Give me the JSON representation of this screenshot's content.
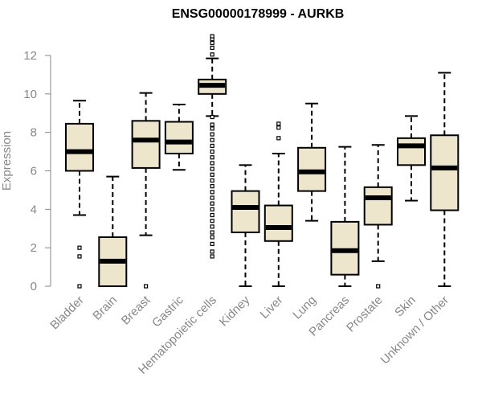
{
  "chart_data": {
    "type": "box",
    "title": "ENSG00000178999 - AURKB",
    "ylabel": "Expression",
    "xlabel": "",
    "ylim": [
      0,
      12
    ],
    "yticks": [
      0,
      2,
      4,
      6,
      8,
      10,
      12
    ],
    "box_fill": "#ede5cc",
    "categories": [
      "Bladder",
      "Brain",
      "Breast",
      "Gastric",
      "Hematopoietic cells",
      "Kidney",
      "Liver",
      "Lung",
      "Pancreas",
      "Prostate",
      "Skin",
      "Unknown / Other"
    ],
    "boxes": [
      {
        "category": "Bladder",
        "whisker_low": 3.7,
        "q1": 6.0,
        "median": 7.0,
        "q3": 8.45,
        "whisker_high": 9.65,
        "outliers": [
          2.0,
          1.55,
          0.0
        ]
      },
      {
        "category": "Brain",
        "whisker_low": 0.0,
        "q1": 0.0,
        "median": 1.3,
        "q3": 2.55,
        "whisker_high": 5.7,
        "outliers": []
      },
      {
        "category": "Breast",
        "whisker_low": 2.65,
        "q1": 6.15,
        "median": 7.6,
        "q3": 8.6,
        "whisker_high": 10.05,
        "outliers": [
          0.0
        ]
      },
      {
        "category": "Gastric",
        "whisker_low": 6.05,
        "q1": 6.9,
        "median": 7.5,
        "q3": 8.55,
        "whisker_high": 9.45,
        "outliers": []
      },
      {
        "category": "Hematopoietic cells",
        "whisker_low": 8.85,
        "q1": 10.0,
        "median": 10.45,
        "q3": 10.75,
        "whisker_high": 11.85,
        "outliers": [
          12.05,
          12.4,
          12.65,
          12.85,
          13.0,
          8.8,
          8.4,
          8.2,
          7.9,
          7.6,
          7.3,
          7.0,
          6.7,
          6.4,
          6.1,
          5.8,
          5.5,
          5.2,
          4.9,
          4.6,
          4.3,
          4.0,
          3.7,
          3.4,
          3.1,
          2.8,
          2.55,
          2.2,
          1.8,
          1.55
        ]
      },
      {
        "category": "Kidney",
        "whisker_low": 0.0,
        "q1": 2.8,
        "median": 4.1,
        "q3": 4.95,
        "whisker_high": 6.3,
        "outliers": []
      },
      {
        "category": "Liver",
        "whisker_low": 0.0,
        "q1": 2.35,
        "median": 3.05,
        "q3": 4.2,
        "whisker_high": 6.9,
        "outliers": [
          7.7,
          8.25,
          8.45
        ]
      },
      {
        "category": "Lung",
        "whisker_low": 3.4,
        "q1": 4.95,
        "median": 5.95,
        "q3": 7.2,
        "whisker_high": 9.5,
        "outliers": []
      },
      {
        "category": "Pancreas",
        "whisker_low": 0.0,
        "q1": 0.6,
        "median": 1.85,
        "q3": 3.35,
        "whisker_high": 7.25,
        "outliers": []
      },
      {
        "category": "Prostate",
        "whisker_low": 1.3,
        "q1": 3.2,
        "median": 4.6,
        "q3": 5.15,
        "whisker_high": 7.35,
        "outliers": [
          0.0
        ]
      },
      {
        "category": "Skin",
        "whisker_low": 4.45,
        "q1": 6.3,
        "median": 7.3,
        "q3": 7.7,
        "whisker_high": 8.85,
        "outliers": []
      },
      {
        "category": "Unknown / Other",
        "whisker_low": 0.0,
        "q1": 3.95,
        "median": 6.15,
        "q3": 7.85,
        "whisker_high": 11.1,
        "outliers": []
      }
    ]
  }
}
